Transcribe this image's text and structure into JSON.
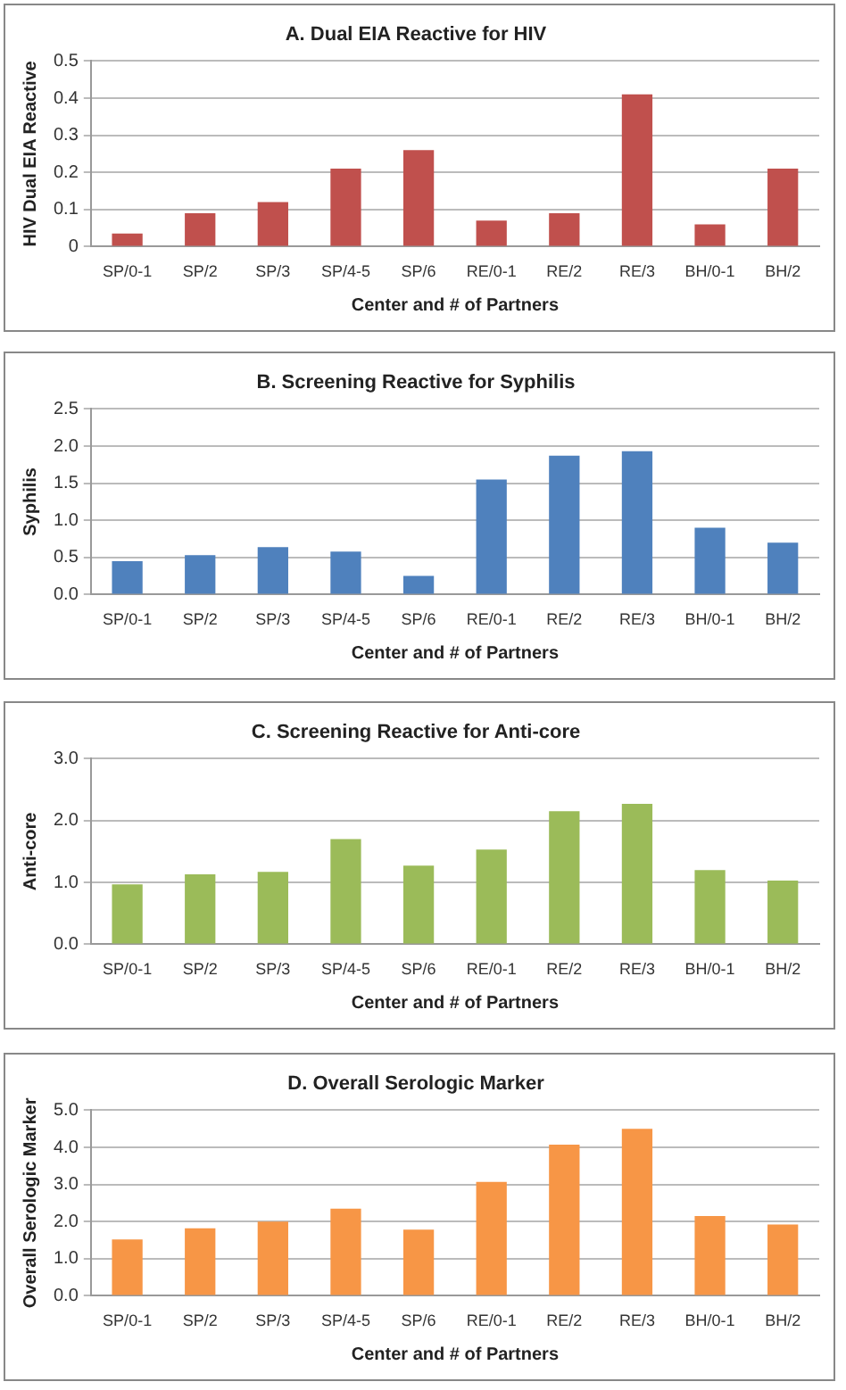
{
  "chart_data": [
    {
      "type": "bar",
      "title": "A. Dual EIA Reactive for HIV",
      "xlabel": "Center and # of Partners",
      "ylabel": "HIV Dual EIA Reactive",
      "categories": [
        "SP/0-1",
        "SP/2",
        "SP/3",
        "SP/4-5",
        "SP/6",
        "RE/0-1",
        "RE/2",
        "RE/3",
        "BH/0-1",
        "BH/2"
      ],
      "values": [
        0.035,
        0.09,
        0.12,
        0.21,
        0.26,
        0.07,
        0.09,
        0.41,
        0.06,
        0.21
      ],
      "color": "#c0504d",
      "ylim": [
        0,
        0.5
      ],
      "yticks": [
        0,
        0.1,
        0.2,
        0.3,
        0.4,
        0.5
      ],
      "grid": "y",
      "legend": false
    },
    {
      "type": "bar",
      "title": "B. Screening Reactive for Syphilis",
      "xlabel": "Center and # of Partners",
      "ylabel": "Syphilis",
      "categories": [
        "SP/0-1",
        "SP/2",
        "SP/3",
        "SP/4-5",
        "SP/6",
        "RE/0-1",
        "RE/2",
        "RE/3",
        "BH/0-1",
        "BH/2"
      ],
      "values": [
        0.45,
        0.53,
        0.64,
        0.58,
        0.25,
        1.55,
        1.87,
        1.93,
        0.9,
        0.7
      ],
      "color": "#4f81bd",
      "ylim": [
        0,
        2.5
      ],
      "yticks": [
        {
          "value": 0,
          "label": "0.0"
        },
        0.5,
        {
          "value": 1,
          "label": "1.0"
        },
        1.5,
        {
          "value": 2,
          "label": "2.0"
        },
        2.5
      ],
      "grid": "y",
      "legend": false
    },
    {
      "type": "bar",
      "title": "C. Screening Reactive for Anti-core",
      "xlabel": "Center and # of Partners",
      "ylabel": "Anti-core",
      "categories": [
        "SP/0-1",
        "SP/2",
        "SP/3",
        "SP/4-5",
        "SP/6",
        "RE/0-1",
        "RE/2",
        "RE/3",
        "BH/0-1",
        "BH/2"
      ],
      "values": [
        0.97,
        1.13,
        1.17,
        1.7,
        1.27,
        1.53,
        2.15,
        2.27,
        1.2,
        1.03
      ],
      "color": "#9bbb59",
      "ylim": [
        0,
        3
      ],
      "yticks": [
        {
          "value": 0,
          "label": "0.0"
        },
        {
          "value": 1,
          "label": "1.0"
        },
        {
          "value": 2,
          "label": "2.0"
        },
        {
          "value": 3,
          "label": "3.0"
        }
      ],
      "grid": "y",
      "legend": false
    },
    {
      "type": "bar",
      "title": "D. Overall Serologic Marker",
      "xlabel": "Center and # of Partners",
      "ylabel": "Overall Serologic Marker",
      "categories": [
        "SP/0-1",
        "SP/2",
        "SP/3",
        "SP/4-5",
        "SP/6",
        "RE/0-1",
        "RE/2",
        "RE/3",
        "BH/0-1",
        "BH/2"
      ],
      "values": [
        1.52,
        1.82,
        2.0,
        2.35,
        1.78,
        3.07,
        4.07,
        4.5,
        2.15,
        1.92
      ],
      "color": "#f79646",
      "ylim": [
        0,
        5
      ],
      "yticks": [
        {
          "value": 0,
          "label": "0.0"
        },
        {
          "value": 1,
          "label": "1.0"
        },
        {
          "value": 2,
          "label": "2.0"
        },
        {
          "value": 3,
          "label": "3.0"
        },
        {
          "value": 4,
          "label": "4.0"
        },
        {
          "value": 5,
          "label": "5.0"
        }
      ],
      "grid": "y",
      "legend": false
    }
  ]
}
